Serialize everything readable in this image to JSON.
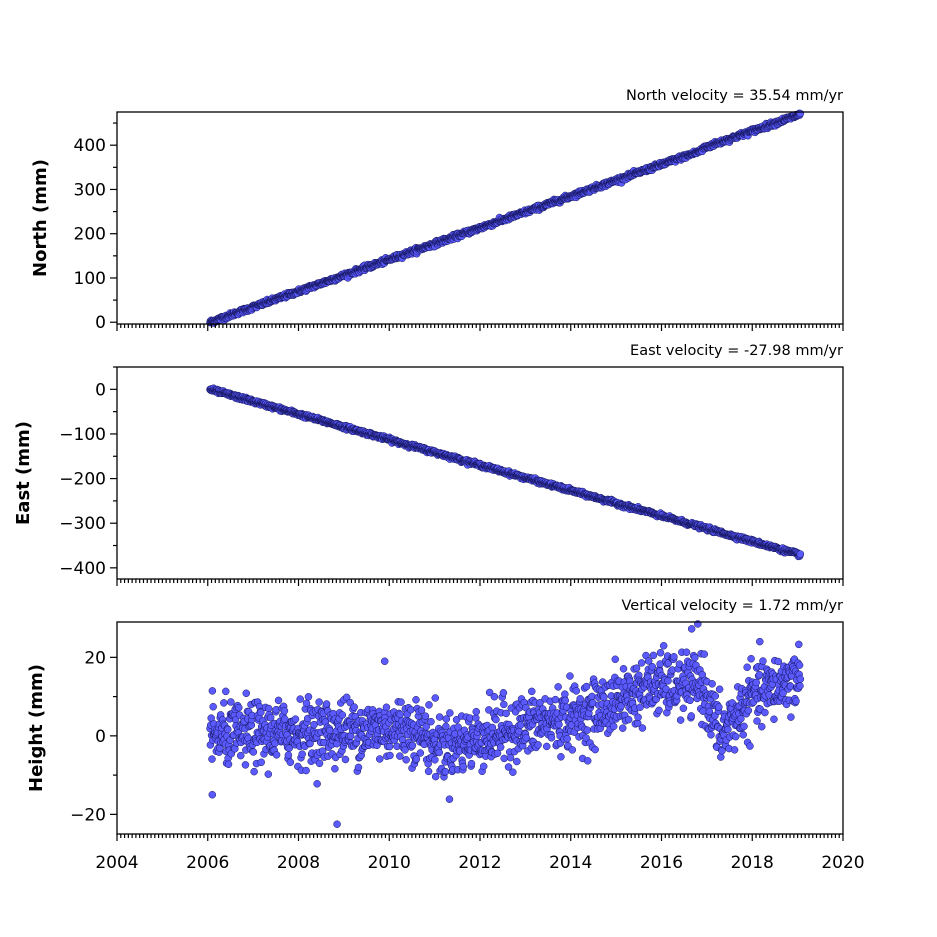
{
  "chart_data": [
    {
      "type": "scatter",
      "title": "North velocity = 35.54 mm/yr",
      "ylabel": "North (mm)",
      "xlim": [
        2004,
        2020
      ],
      "ylim": [
        -4,
        475
      ],
      "yticks": [
        0,
        100,
        200,
        300,
        400
      ],
      "ytick_labels": [
        "0",
        "100",
        "200",
        "300",
        "400"
      ],
      "x_start": 2006.05,
      "x_end": 2019.06,
      "y_start": 0,
      "y_end": 466,
      "rate": 35.54,
      "noise": 2.5,
      "offset_step": {
        "x": 2016.9,
        "dy": 8
      },
      "marker_color": "#5a5aff",
      "marker_edge": "#14145a"
    },
    {
      "type": "scatter",
      "title": "East velocity = -27.98 mm/yr",
      "ylabel": "East (mm)",
      "xlim": [
        2004,
        2020
      ],
      "ylim": [
        -425,
        50
      ],
      "yticks": [
        0,
        -100,
        -200,
        -300,
        -400
      ],
      "ytick_labels": [
        "0",
        "−100",
        "−200",
        "−300",
        "−400"
      ],
      "x_start": 2006.05,
      "x_end": 2019.06,
      "y_start": 0,
      "y_end": -371,
      "rate": -27.98,
      "noise": 2.0,
      "marker_color": "#5a5aff",
      "marker_edge": "#14145a"
    },
    {
      "type": "scatter",
      "title": "Vertical velocity = 1.72 mm/yr",
      "ylabel": "Height (mm)",
      "xlim": [
        2004,
        2020
      ],
      "ylim": [
        -25,
        29
      ],
      "yticks": [
        20,
        0,
        -20
      ],
      "ytick_labels": [
        "20",
        "0",
        "−20"
      ],
      "x_start": 2006.05,
      "x_end": 2019.06,
      "rate": 1.72,
      "noise": 4.0,
      "trend_knots": [
        [
          2006.05,
          0
        ],
        [
          2010.5,
          2
        ],
        [
          2011.2,
          -3
        ],
        [
          2012.5,
          1
        ],
        [
          2014.5,
          6
        ],
        [
          2015.8,
          13
        ],
        [
          2016.9,
          13
        ],
        [
          2017.3,
          0
        ],
        [
          2018.0,
          10
        ],
        [
          2019.06,
          15
        ]
      ],
      "outliers": [
        [
          2008.85,
          -22.5
        ],
        [
          2016.8,
          28.5
        ],
        [
          2006.1,
          -15
        ],
        [
          2009.9,
          19
        ]
      ],
      "marker_color": "#5a5aff",
      "marker_edge": "#14145a"
    }
  ],
  "xaxis": {
    "ticks": [
      2004,
      2006,
      2008,
      2010,
      2012,
      2014,
      2016,
      2018,
      2020
    ],
    "tick_labels": [
      "2004",
      "2006",
      "2008",
      "2010",
      "2012",
      "2014",
      "2016",
      "2018",
      "2020"
    ]
  }
}
